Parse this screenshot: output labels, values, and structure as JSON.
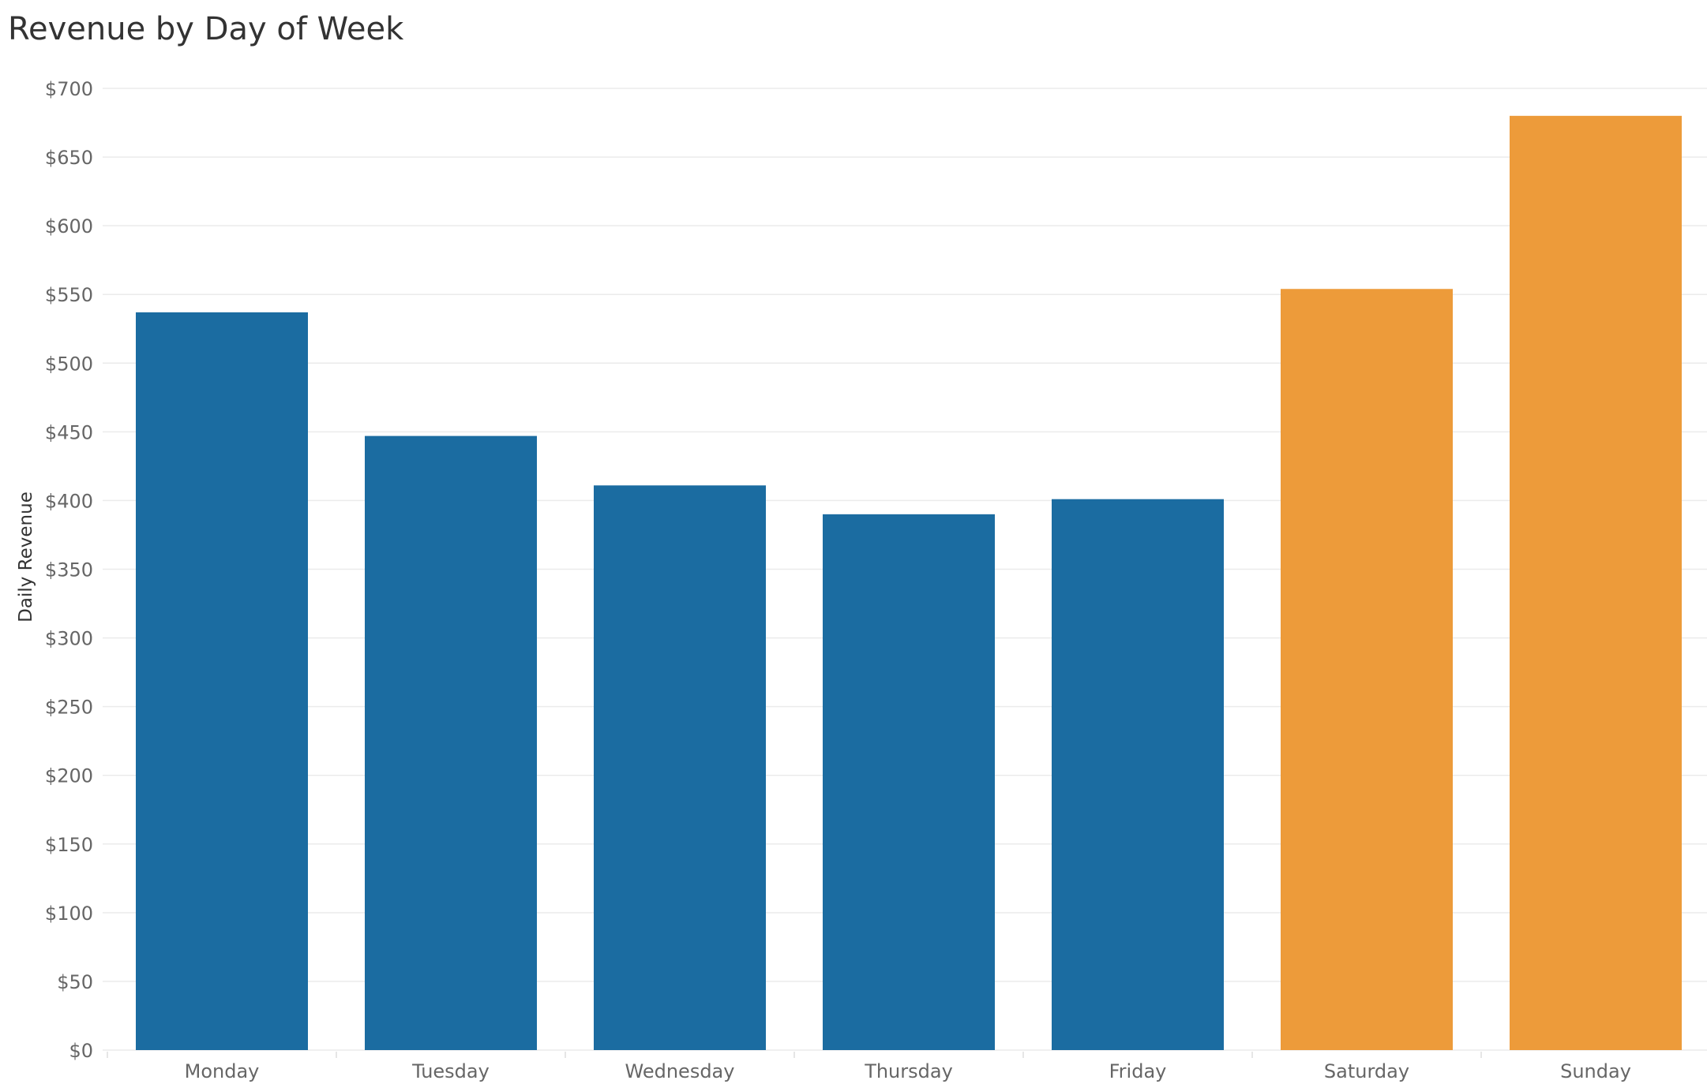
{
  "chart_data": {
    "type": "bar",
    "title": "Revenue by Day of Week",
    "xlabel": "",
    "ylabel": "Daily Revenue",
    "ylim": [
      0,
      700
    ],
    "yticks": [
      0,
      50,
      100,
      150,
      200,
      250,
      300,
      350,
      400,
      450,
      500,
      550,
      600,
      650,
      700
    ],
    "ytick_labels": [
      "$0",
      "$50",
      "$100",
      "$150",
      "$200",
      "$250",
      "$300",
      "$350",
      "$400",
      "$450",
      "$500",
      "$550",
      "$600",
      "$650",
      "$700"
    ],
    "categories": [
      "Monday",
      "Tuesday",
      "Wednesday",
      "Thursday",
      "Friday",
      "Saturday",
      "Sunday"
    ],
    "values": [
      537,
      447,
      411,
      390,
      401,
      554,
      680
    ],
    "bar_colors": [
      "#1b6ca1",
      "#1b6ca1",
      "#1b6ca1",
      "#1b6ca1",
      "#1b6ca1",
      "#ed9b3a",
      "#ed9b3a"
    ],
    "grid": true,
    "gridline_color": "#ebebeb"
  }
}
